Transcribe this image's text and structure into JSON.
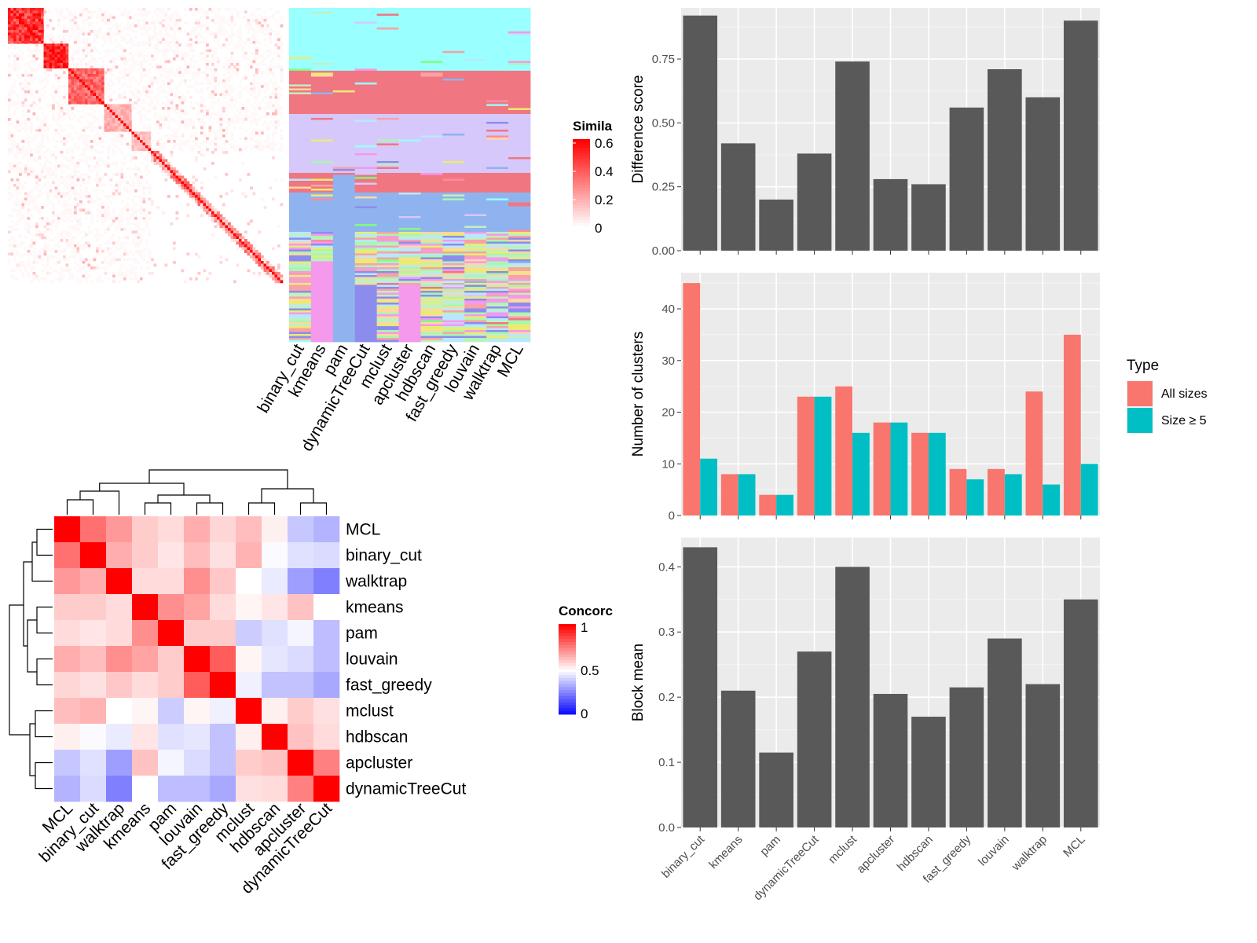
{
  "methods_sim": [
    "binary_cut",
    "kmeans",
    "pam",
    "dynamicTreeCut",
    "mclust",
    "apcluster",
    "hdbscan",
    "fast_greedy",
    "louvain",
    "walktrap",
    "MCL"
  ],
  "similarity_legend": {
    "title": "Simila",
    "ticks": [
      "0.6",
      "0.4",
      "0.2",
      "0"
    ]
  },
  "concordance_legend": {
    "title": "Concorc",
    "ticks": [
      "1",
      "0.5",
      "0"
    ]
  },
  "chart_data": [
    {
      "type": "heatmap",
      "name": "similarity-matrix",
      "legend_title": "Simila",
      "value_range": [
        0,
        0.6
      ],
      "blocks": [
        {
          "size": 40,
          "within_similarity": 0.55
        },
        {
          "size": 28,
          "within_similarity": 0.62
        },
        {
          "size": 42,
          "within_similarity": 0.42
        },
        {
          "size": 30,
          "within_similarity": 0.22
        },
        {
          "size": 22,
          "within_similarity": 0.18
        },
        {
          "size": 150,
          "within_similarity": 0.05
        }
      ]
    },
    {
      "type": "heatmap",
      "name": "cluster-assignments",
      "columns": [
        "binary_cut",
        "kmeans",
        "pam",
        "dynamicTreeCut",
        "mclust",
        "apcluster",
        "hdbscan",
        "fast_greedy",
        "louvain",
        "walktrap",
        "MCL"
      ]
    },
    {
      "type": "heatmap",
      "name": "concordance",
      "legend_title": "Concorc",
      "value_range": [
        0,
        1
      ],
      "row_labels": [
        "MCL",
        "binary_cut",
        "walktrap",
        "kmeans",
        "pam",
        "louvain",
        "fast_greedy",
        "mclust",
        "hdbscan",
        "apcluster",
        "dynamicTreeCut"
      ],
      "col_labels": [
        "MCL",
        "binary_cut",
        "walktrap",
        "kmeans",
        "pam",
        "louvain",
        "fast_greedy",
        "mclust",
        "hdbscan",
        "apcluster",
        "dynamicTreeCut"
      ],
      "values": [
        [
          1.0,
          0.78,
          0.7,
          0.6,
          0.57,
          0.66,
          0.58,
          0.63,
          0.53,
          0.39,
          0.35
        ],
        [
          0.78,
          1.0,
          0.66,
          0.6,
          0.55,
          0.63,
          0.56,
          0.65,
          0.49,
          0.44,
          0.43
        ],
        [
          0.7,
          0.66,
          1.0,
          0.57,
          0.57,
          0.72,
          0.61,
          0.5,
          0.46,
          0.31,
          0.25
        ],
        [
          0.6,
          0.6,
          0.57,
          1.0,
          0.72,
          0.68,
          0.57,
          0.52,
          0.55,
          0.62,
          0.5
        ],
        [
          0.57,
          0.55,
          0.57,
          0.72,
          1.0,
          0.6,
          0.6,
          0.4,
          0.44,
          0.48,
          0.37
        ],
        [
          0.66,
          0.63,
          0.72,
          0.68,
          0.6,
          1.0,
          0.82,
          0.52,
          0.45,
          0.43,
          0.37
        ],
        [
          0.58,
          0.56,
          0.61,
          0.57,
          0.6,
          0.82,
          1.0,
          0.47,
          0.38,
          0.38,
          0.33
        ],
        [
          0.63,
          0.65,
          0.5,
          0.52,
          0.4,
          0.52,
          0.47,
          1.0,
          0.53,
          0.6,
          0.56
        ],
        [
          0.53,
          0.49,
          0.46,
          0.55,
          0.44,
          0.45,
          0.38,
          0.53,
          1.0,
          0.62,
          0.57
        ],
        [
          0.39,
          0.44,
          0.31,
          0.62,
          0.48,
          0.43,
          0.38,
          0.6,
          0.62,
          1.0,
          0.75
        ],
        [
          0.35,
          0.43,
          0.25,
          0.5,
          0.37,
          0.37,
          0.33,
          0.56,
          0.57,
          0.75,
          1.0
        ]
      ]
    },
    {
      "type": "bar",
      "name": "difference-score",
      "categories": [
        "binary_cut",
        "kmeans",
        "pam",
        "dynamicTreeCut",
        "mclust",
        "apcluster",
        "hdbscan",
        "fast_greedy",
        "louvain",
        "walktrap",
        "MCL"
      ],
      "values": [
        0.92,
        0.42,
        0.2,
        0.38,
        0.74,
        0.28,
        0.26,
        0.56,
        0.71,
        0.6,
        0.9
      ],
      "ylabel": "Difference score",
      "ylim": [
        0,
        0.95
      ],
      "yticks": [
        0.0,
        0.25,
        0.5,
        0.75
      ],
      "ytick_labels": [
        "0.00",
        "0.25",
        "0.50",
        "0.75"
      ],
      "grid": true
    },
    {
      "type": "bar",
      "name": "number-of-clusters",
      "categories": [
        "binary_cut",
        "kmeans",
        "pam",
        "dynamicTreeCut",
        "mclust",
        "apcluster",
        "hdbscan",
        "fast_greedy",
        "louvain",
        "walktrap",
        "MCL"
      ],
      "series": [
        {
          "name": "All sizes",
          "color": "#F8766D",
          "values": [
            45,
            8,
            4,
            23,
            25,
            18,
            16,
            9,
            9,
            24,
            35
          ]
        },
        {
          "name": "Size ≥ 5",
          "color": "#00BFC4",
          "values": [
            11,
            8,
            4,
            23,
            16,
            18,
            16,
            7,
            8,
            6,
            10
          ]
        }
      ],
      "ylabel": "Number of clusters",
      "ylim": [
        0,
        47
      ],
      "yticks": [
        0,
        10,
        20,
        30,
        40
      ],
      "ytick_labels": [
        "0",
        "10",
        "20",
        "30",
        "40"
      ],
      "legend_title": "Type",
      "legend_position": "right",
      "grid": true
    },
    {
      "type": "bar",
      "name": "block-mean",
      "categories": [
        "binary_cut",
        "kmeans",
        "pam",
        "dynamicTreeCut",
        "mclust",
        "apcluster",
        "hdbscan",
        "fast_greedy",
        "louvain",
        "walktrap",
        "MCL"
      ],
      "values": [
        0.43,
        0.21,
        0.115,
        0.27,
        0.4,
        0.205,
        0.17,
        0.215,
        0.29,
        0.22,
        0.35
      ],
      "ylabel": "Block mean",
      "ylim": [
        0,
        0.445
      ],
      "yticks": [
        0.0,
        0.1,
        0.2,
        0.3,
        0.4
      ],
      "ytick_labels": [
        "0.0",
        "0.1",
        "0.2",
        "0.3",
        "0.4"
      ],
      "grid": true
    }
  ]
}
